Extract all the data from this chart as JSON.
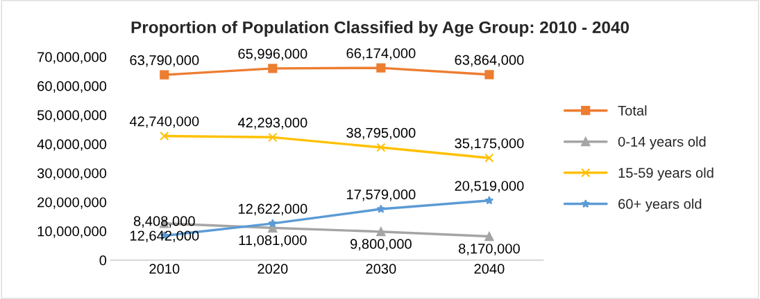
{
  "chart_data": {
    "type": "line",
    "title": "Proportion of Population Classified by Age Group: 2010 - 2040",
    "categories": [
      "2010",
      "2020",
      "2030",
      "2040"
    ],
    "series": [
      {
        "name": "Total",
        "color": "#ed7d31",
        "marker": "square",
        "values": [
          63790000,
          65996000,
          66174000,
          63864000
        ],
        "value_labels": [
          "63,790,000",
          "65,996,000",
          "66,174,000",
          "63,864,000"
        ]
      },
      {
        "name": "0-14 years old",
        "color": "#a5a5a5",
        "marker": "triangle",
        "values": [
          12642000,
          11081000,
          9800000,
          8170000
        ],
        "value_labels": [
          "12,642,000",
          "11,081,000",
          "9,800,000",
          "8,170,000"
        ]
      },
      {
        "name": "15-59 years old",
        "color": "#ffc000",
        "marker": "cross",
        "values": [
          42740000,
          42293000,
          38795000,
          35175000
        ],
        "value_labels": [
          "42,740,000",
          "42,293,000",
          "38,795,000",
          "35,175,000"
        ]
      },
      {
        "name": "60+ years old",
        "color": "#5b9bd5",
        "marker": "star",
        "values": [
          8408000,
          12622000,
          17579000,
          20519000
        ],
        "value_labels": [
          "8,408,000",
          "12,622,000",
          "17,579,000",
          "20,519,000"
        ]
      }
    ],
    "ylim": [
      0,
      70000000
    ],
    "yticks": [
      0,
      {
        "value": 10000000,
        "label": "10,000,000"
      },
      {
        "value": 20000000,
        "label": "20,000,000"
      },
      {
        "value": 30000000,
        "label": "30,000,000"
      },
      {
        "value": 40000000,
        "label": "40,000,000"
      },
      {
        "value": 50000000,
        "label": "50,000,000"
      },
      {
        "value": 60000000,
        "label": "60,000,000"
      },
      {
        "value": 70000000,
        "label": "70,000,000"
      }
    ],
    "legend": "right",
    "grid": false
  }
}
